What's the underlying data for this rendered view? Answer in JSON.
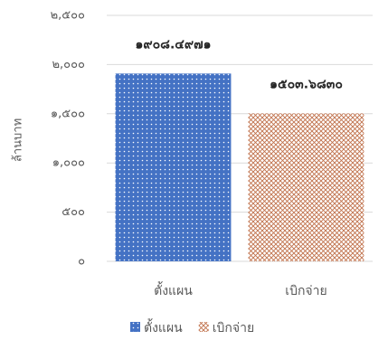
{
  "chart_data": {
    "type": "bar",
    "y_label": "ล้านบาท",
    "categories": [
      "ตั้งแผน",
      "เบิกจ่าย"
    ],
    "values": [
      1908.4971,
      1503.683
    ],
    "value_labels": [
      "๑๙๐๘.๔๙๗๑",
      "๑๕๐๓.๖๘๓๐"
    ],
    "colors": [
      "#4472c4",
      "#c0704a"
    ],
    "patterns": [
      "dots",
      "crosshatch"
    ],
    "ylim": [
      0,
      2500
    ],
    "yticks": [
      {
        "value": 0,
        "label": "๐"
      },
      {
        "value": 500,
        "label": "๕๐๐"
      },
      {
        "value": 1000,
        "label": "๑,๐๐๐"
      },
      {
        "value": 1500,
        "label": "๑,๕๐๐"
      },
      {
        "value": 2000,
        "label": "๒,๐๐๐"
      },
      {
        "value": 2500,
        "label": "๒,๕๐๐"
      }
    ],
    "grid": true,
    "legend": "bottom"
  }
}
